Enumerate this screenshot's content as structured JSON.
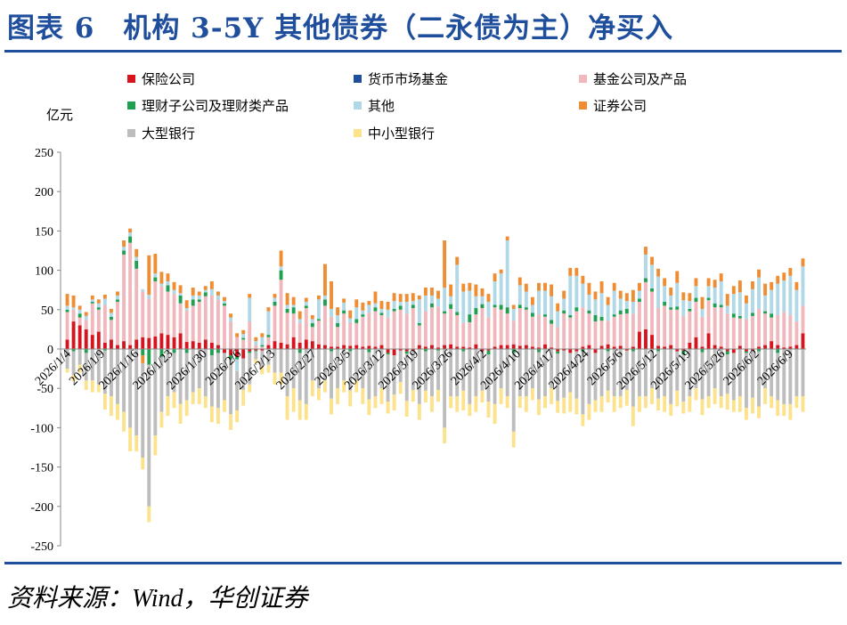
{
  "figure": {
    "title": "图表 6　机构 3-5Y 其他债券（二永债为主）净买入",
    "source": "资料来源：Wind，华创证券"
  },
  "chart_data": {
    "type": "bar",
    "stacked": true,
    "unit_label": "亿元",
    "ylim": [
      -250,
      250
    ],
    "yticks": [
      250,
      200,
      150,
      100,
      50,
      0,
      -50,
      -100,
      -150,
      -200,
      -250
    ],
    "grid": false,
    "legend_position": "top",
    "x_tick_labels": [
      "2026/1/4",
      "2026/1/9",
      "2026/1/16",
      "2026/1/23",
      "2026/1/30",
      "2026/2/6",
      "2026/2/13",
      "2026/2/27",
      "2026/3/5",
      "2026/3/12",
      "2026/3/19",
      "2026/3/26",
      "2026/4/2",
      "2026/4/10",
      "2026/4/17",
      "2026/4/24",
      "2026/5/6",
      "2026/5/12",
      "2026/5/19",
      "2026/5/26",
      "2026/6/2",
      "2026/6/9"
    ],
    "series": [
      {
        "name": "保险公司",
        "color": "#d7141e",
        "values": [
          12,
          35,
          30,
          25,
          18,
          22,
          8,
          12,
          5,
          10,
          5,
          12,
          15,
          14,
          16,
          20,
          18,
          15,
          20,
          9,
          10,
          8,
          12,
          8,
          5,
          -5,
          -8,
          -10,
          -12,
          -3,
          -2,
          -2,
          5,
          10,
          8,
          6,
          15,
          8,
          12,
          10,
          6,
          5,
          3,
          3,
          5,
          4,
          5,
          3,
          4,
          3,
          5,
          -5,
          -8,
          -2,
          -3,
          -2,
          5,
          3,
          5,
          2,
          5,
          6,
          3,
          3,
          2,
          6,
          -3,
          -2,
          3,
          5,
          5,
          6,
          4,
          5,
          3,
          2,
          6,
          2,
          -3,
          -2,
          -5,
          -3,
          3,
          5,
          -5,
          4,
          6,
          3,
          4,
          -2,
          3,
          22,
          25,
          18,
          4,
          3,
          5,
          -3,
          -2,
          8,
          15,
          3,
          20,
          5,
          3,
          -3,
          -5,
          4,
          -3,
          -2,
          3,
          5,
          10,
          5,
          2,
          3,
          5,
          20
        ]
      },
      {
        "name": "货币市场基金",
        "color": "#1f4e9c",
        "values": [
          0,
          0,
          0,
          0,
          0,
          0,
          0,
          0,
          0,
          0,
          0,
          0,
          0,
          0,
          0,
          0,
          0,
          0,
          0,
          0,
          0,
          0,
          0,
          0,
          0,
          0,
          0,
          0,
          0,
          0,
          0,
          0,
          0,
          0,
          0,
          0,
          0,
          0,
          0,
          0,
          0,
          0,
          0,
          0,
          0,
          0,
          0,
          0,
          0,
          0,
          0,
          0,
          0,
          0,
          0,
          0,
          0,
          0,
          0,
          0,
          0,
          0,
          0,
          0,
          0,
          0,
          0,
          0,
          0,
          0,
          0,
          0,
          0,
          0,
          0,
          0,
          0,
          0,
          0,
          0,
          0,
          0,
          0,
          0,
          0,
          0,
          0,
          0,
          0,
          0,
          0,
          0,
          0,
          0,
          0,
          0,
          0,
          0,
          0,
          0,
          0,
          0,
          0,
          0,
          0,
          0,
          0,
          0,
          0,
          0,
          0,
          0,
          0,
          0,
          0,
          0,
          0,
          0
        ]
      },
      {
        "name": "基金公司及产品",
        "color": "#f0b8bc",
        "values": [
          35,
          15,
          10,
          12,
          40,
          28,
          48,
          25,
          55,
          110,
          130,
          90,
          58,
          50,
          70,
          60,
          55,
          55,
          38,
          40,
          45,
          52,
          55,
          60,
          58,
          55,
          35,
          15,
          12,
          35,
          5,
          3,
          10,
          45,
          80,
          40,
          30,
          25,
          40,
          18,
          30,
          50,
          38,
          25,
          40,
          30,
          28,
          38,
          42,
          45,
          38,
          40,
          48,
          50,
          45,
          52,
          25,
          45,
          48,
          52,
          40,
          45,
          40,
          30,
          32,
          38,
          52,
          40,
          50,
          45,
          40,
          30,
          48,
          45,
          38,
          42,
          35,
          30,
          28,
          45,
          40,
          48,
          50,
          40,
          35,
          32,
          30,
          38,
          40,
          45,
          42,
          38,
          60,
          55,
          48,
          52,
          45,
          50,
          42,
          40,
          45,
          38,
          42,
          48,
          50,
          45,
          40,
          35,
          38,
          42,
          48,
          40,
          30,
          38,
          45,
          40,
          30,
          35,
          38,
          35,
          40,
          38
        ]
      },
      {
        "name": "理财子公司及理财类产品",
        "color": "#1fa050",
        "values": [
          3,
          -3,
          5,
          -5,
          2,
          3,
          -2,
          4,
          3,
          5,
          8,
          10,
          -8,
          -20,
          5,
          -10,
          8,
          -5,
          10,
          -5,
          8,
          3,
          5,
          -8,
          -5,
          3,
          -5,
          -3,
          2,
          -2,
          -1,
          2,
          3,
          5,
          12,
          5,
          8,
          -5,
          3,
          5,
          2,
          8,
          -3,
          5,
          4,
          -3,
          5,
          3,
          -4,
          5,
          3,
          -2,
          3,
          5,
          -3,
          4,
          3,
          -3,
          5,
          -2,
          3,
          6,
          4,
          -3,
          10,
          8,
          5,
          -5,
          3,
          6,
          8,
          -5,
          4,
          3,
          5,
          -4,
          3,
          5,
          -3,
          4,
          3,
          5,
          -3,
          4,
          8,
          5,
          -3,
          3,
          5,
          6,
          -3,
          4,
          5,
          4,
          -3,
          5,
          3,
          4,
          -5,
          3,
          5,
          -4,
          3,
          5,
          3,
          -4,
          5,
          3,
          -2,
          4,
          -3,
          3,
          5,
          -5
        ]
      },
      {
        "name": "其他",
        "color": "#b0d8e6",
        "values": [
          5,
          3,
          5,
          5,
          3,
          5,
          8,
          5,
          5,
          5,
          5,
          5,
          3,
          5,
          5,
          3,
          5,
          5,
          3,
          3,
          5,
          5,
          3,
          8,
          5,
          3,
          5,
          -15,
          5,
          30,
          5,
          10,
          30,
          5,
          5,
          5,
          3,
          5,
          5,
          5,
          25,
          5,
          10,
          10,
          10,
          5,
          15,
          5,
          10,
          5,
          5,
          10,
          10,
          5,
          15,
          5,
          30,
          20,
          10,
          10,
          30,
          10,
          60,
          40,
          30,
          15,
          10,
          20,
          30,
          40,
          85,
          15,
          25,
          20,
          10,
          30,
          30,
          30,
          20,
          15,
          50,
          40,
          30,
          20,
          20,
          30,
          20,
          30,
          15,
          10,
          15,
          10,
          30,
          30,
          40,
          20,
          15,
          30,
          20,
          10,
          15,
          10,
          15,
          20,
          30,
          10,
          25,
          30,
          20,
          30,
          40,
          20,
          30,
          40,
          40,
          50,
          40,
          50,
          60,
          100
        ]
      },
      {
        "name": "证券公司",
        "color": "#f08c32",
        "values": [
          15,
          15,
          5,
          5,
          5,
          5,
          5,
          5,
          5,
          8,
          5,
          10,
          -10,
          50,
          25,
          15,
          10,
          10,
          10,
          10,
          10,
          5,
          5,
          10,
          5,
          5,
          5,
          5,
          5,
          5,
          5,
          5,
          5,
          5,
          20,
          15,
          10,
          10,
          5,
          5,
          5,
          40,
          35,
          10,
          5,
          10,
          10,
          10,
          5,
          15,
          10,
          10,
          10,
          10,
          10,
          10,
          5,
          10,
          10,
          10,
          60,
          15,
          10,
          10,
          10,
          15,
          10,
          10,
          10,
          5,
          5,
          5,
          10,
          10,
          10,
          10,
          10,
          15,
          10,
          10,
          10,
          10,
          10,
          15,
          10,
          15,
          10,
          10,
          10,
          10,
          15,
          10,
          10,
          10,
          10,
          10,
          10,
          15,
          10,
          10,
          10,
          15,
          10,
          10,
          10,
          15,
          10,
          15,
          10,
          10,
          10,
          15,
          10,
          10,
          10,
          10,
          10,
          10,
          10,
          10,
          10,
          10,
          30
        ]
      },
      {
        "name": "大型银行",
        "color": "#bdbdbd",
        "values": [
          -25,
          -30,
          -20,
          -35,
          -40,
          -45,
          -55,
          -60,
          -70,
          -80,
          -100,
          -110,
          -120,
          -180,
          -110,
          -70,
          -60,
          -50,
          -70,
          -60,
          -55,
          -50,
          -60,
          -65,
          -70,
          -60,
          -70,
          -50,
          -40,
          -40,
          -10,
          -20,
          -20,
          -30,
          -30,
          -60,
          -50,
          -60,
          -70,
          -40,
          -50,
          -40,
          -60,
          -50,
          -40,
          -50,
          -40,
          -50,
          -60,
          -60,
          -50,
          -60,
          -50,
          -40,
          -60,
          -50,
          -70,
          -50,
          -60,
          -50,
          -100,
          -60,
          -60,
          -50,
          -70,
          -60,
          -50,
          -60,
          -70,
          -50,
          -60,
          -100,
          -60,
          -60,
          -50,
          -60,
          -60,
          -50,
          -60,
          -60,
          -50,
          -60,
          -80,
          -70,
          -60,
          -60,
          -50,
          -60,
          -60,
          -50,
          -70,
          -60,
          -60,
          -50,
          -60,
          -60,
          -70,
          -50,
          -60,
          -60,
          -50,
          -60,
          -60,
          -50,
          -60,
          -50,
          -60,
          -60,
          -70,
          -60,
          -70,
          -50,
          -60,
          -60,
          -70,
          -70,
          -60,
          -60,
          -60,
          -60,
          -90,
          -90
        ]
      },
      {
        "name": "中小型银行",
        "color": "#fde28c",
        "values": [
          -5,
          -8,
          -10,
          -12,
          -15,
          -10,
          -20,
          -25,
          -20,
          -25,
          -30,
          -20,
          -15,
          -20,
          -25,
          -20,
          -25,
          -20,
          -25,
          -20,
          -15,
          -20,
          -15,
          -20,
          -20,
          -15,
          -20,
          -15,
          -20,
          -10,
          -5,
          -10,
          -10,
          -15,
          -15,
          -30,
          -30,
          -25,
          -20,
          -20,
          -15,
          -15,
          -20,
          -20,
          -15,
          -20,
          -15,
          -20,
          -20,
          -15,
          -20,
          -15,
          -20,
          -15,
          -20,
          -15,
          -20,
          -15,
          -20,
          -15,
          -20,
          -15,
          -20,
          -25,
          -15,
          -20,
          -15,
          -20,
          -25,
          -20,
          -15,
          -20,
          -15,
          -20,
          -15,
          -20,
          -15,
          -20,
          -15,
          -20,
          -25,
          -20,
          -15,
          -20,
          -15,
          -20,
          -15,
          -20,
          -15,
          -20,
          -25,
          -20,
          -15,
          -20,
          -15,
          -20,
          -15,
          -20,
          -15,
          -20,
          -15,
          -20,
          -15,
          -20,
          -15,
          -20,
          -15,
          -20,
          -15,
          -20,
          -15,
          -20,
          -15,
          -20,
          -15,
          -20,
          -15,
          -20,
          -15,
          -20,
          -15,
          -10
        ]
      }
    ]
  }
}
